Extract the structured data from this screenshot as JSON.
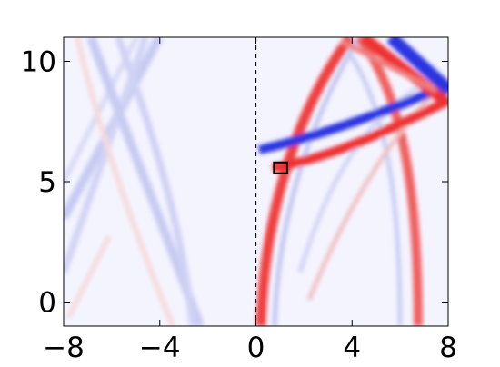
{
  "chart_data": {
    "type": "image",
    "xlim": [
      -8,
      8
    ],
    "ylim": [
      -1,
      11
    ],
    "xticks": [
      {
        "value": -8,
        "label": "−8"
      },
      {
        "value": -4,
        "label": "−4"
      },
      0,
      4,
      8
    ],
    "yticks": [
      0,
      5,
      10
    ],
    "vline": 0,
    "box": {
      "x": [
        0.75,
        1.3
      ],
      "y": [
        5.35,
        5.8
      ]
    }
  }
}
